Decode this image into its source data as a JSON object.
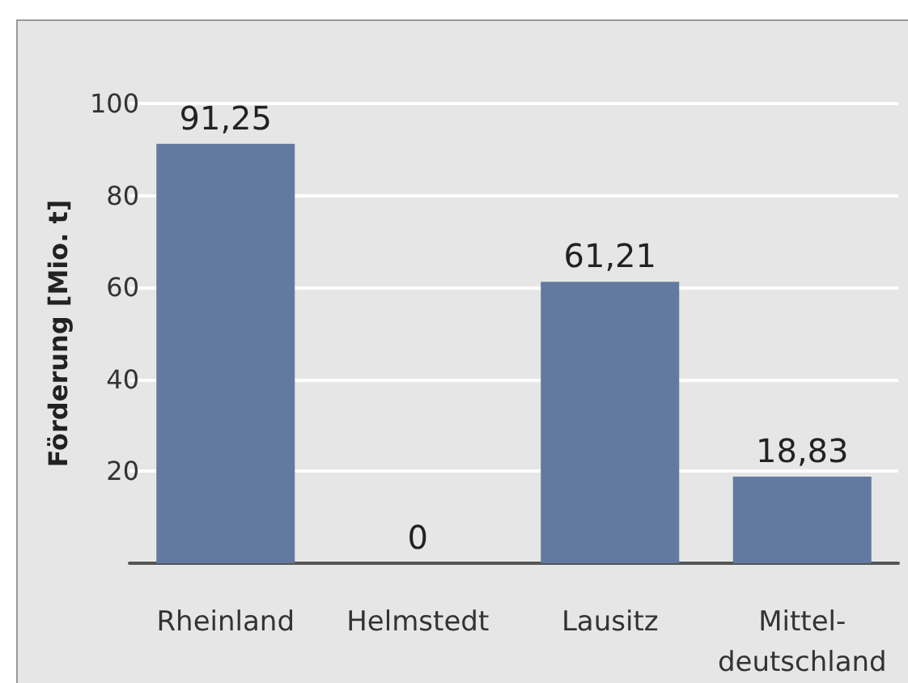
{
  "chart_data": {
    "type": "bar",
    "ylabel": "Förderung [Mio. t]",
    "categories": [
      "Rheinland",
      "Helmstedt",
      "Lausitz",
      "Mittel-\ndeutschland"
    ],
    "values": [
      91.25,
      0,
      61.21,
      18.83
    ],
    "value_labels": [
      "91,25",
      "0",
      "61,21",
      "18,83"
    ],
    "color": "#63799f",
    "ylim": [
      0,
      100
    ],
    "yticks": [
      20,
      40,
      60,
      80,
      100
    ],
    "grid": "y"
  }
}
